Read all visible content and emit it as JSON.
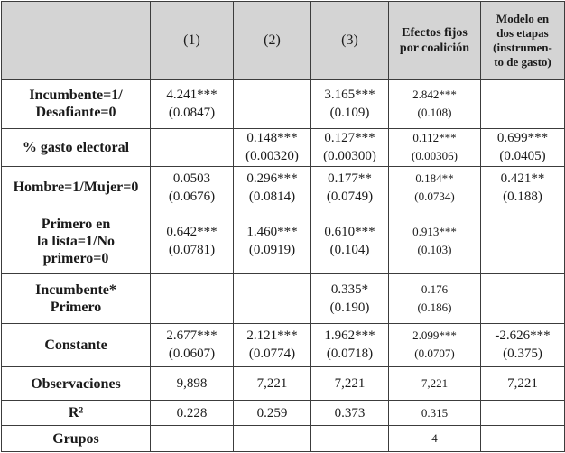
{
  "table": {
    "headers": [
      "",
      "(1)",
      "(2)",
      "(3)",
      "Efectos fijos por coalición",
      "Modelo en dos etapas (instrumento de gasto)"
    ],
    "header_lines": {
      "col4": [
        "Efectos fijos",
        "por coalición"
      ],
      "col5": [
        "Modelo en",
        "dos etapas",
        "(instrumen-",
        "to de gasto)"
      ]
    },
    "rows": [
      {
        "label": [
          "Incumbente=1/",
          "Desafiante=0"
        ],
        "cells": [
          [
            "4.241***",
            "(0.0847)"
          ],
          [],
          [
            "3.165***",
            "(0.109)"
          ],
          [
            "2.842***",
            "(0.108)"
          ],
          []
        ]
      },
      {
        "label": [
          "% gasto electoral"
        ],
        "cells": [
          [],
          [
            "0.148***",
            "(0.00320)"
          ],
          [
            "0.127***",
            "(0.00300)"
          ],
          [
            "0.112***",
            "(0.00306)"
          ],
          [
            "0.699***",
            "(0.0405)"
          ]
        ]
      },
      {
        "label": [
          "Hombre=1/Mujer=0"
        ],
        "cells": [
          [
            "0.0503",
            "(0.0676)"
          ],
          [
            "0.296***",
            "(0.0814)"
          ],
          [
            "0.177**",
            "(0.0749)"
          ],
          [
            "0.184**",
            "(0.0734)"
          ],
          [
            "0.421**",
            "(0.188)"
          ]
        ]
      },
      {
        "label": [
          "Primero en",
          "la lista=1/No",
          "primero=0"
        ],
        "cells": [
          [
            "0.642***",
            "(0.0781)"
          ],
          [
            "1.460***",
            "(0.0919)"
          ],
          [
            "0.610***",
            "(0.104)"
          ],
          [
            "0.913***",
            "(0.103)"
          ],
          []
        ]
      },
      {
        "label": [
          "Incumbente*",
          "Primero"
        ],
        "cells": [
          [],
          [],
          [
            "0.335*",
            "(0.190)"
          ],
          [
            "0.176",
            "(0.186)"
          ],
          []
        ]
      },
      {
        "label": [
          "Constante"
        ],
        "cells": [
          [
            "2.677***",
            "(0.0607)"
          ],
          [
            "2.121***",
            "(0.0774)"
          ],
          [
            "1.962***",
            "(0.0718)"
          ],
          [
            "2.099***",
            "(0.0707)"
          ],
          [
            "-2.626***",
            "(0.375)"
          ]
        ]
      },
      {
        "label": [
          "Observaciones"
        ],
        "cells": [
          [
            "9,898"
          ],
          [
            "7,221"
          ],
          [
            "7,221"
          ],
          [
            "7,221"
          ],
          [
            "7,221"
          ]
        ]
      },
      {
        "label": [
          "R²"
        ],
        "cells": [
          [
            "0.228"
          ],
          [
            "0.259"
          ],
          [
            "0.373"
          ],
          [
            "0.315"
          ],
          []
        ]
      },
      {
        "label": [
          "Grupos"
        ],
        "cells": [
          [],
          [],
          [],
          [
            "4"
          ],
          []
        ]
      }
    ]
  }
}
